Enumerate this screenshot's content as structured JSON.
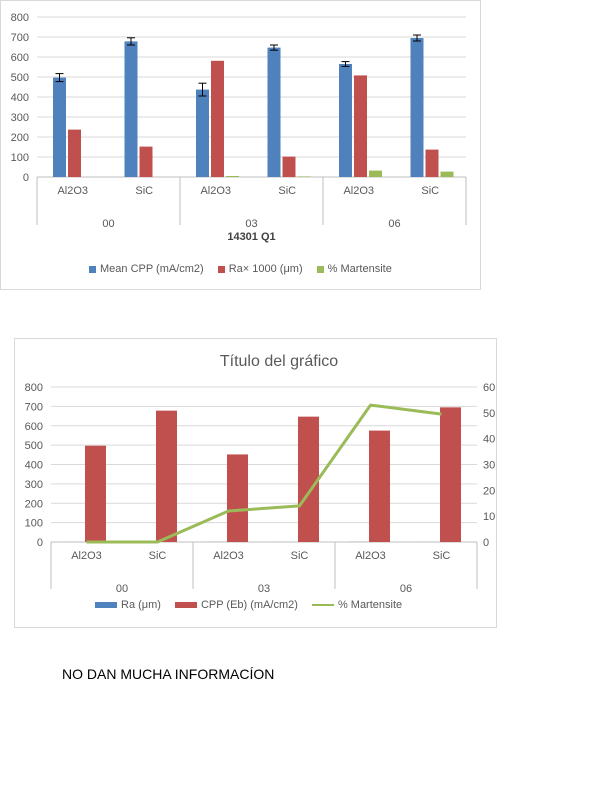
{
  "chart_data": [
    {
      "type": "bar",
      "title": "",
      "group_title": "14301 Q1",
      "categories": [
        "Al2O3",
        "SiC",
        "Al2O3",
        "SiC",
        "Al2O3",
        "SiC"
      ],
      "groups": [
        "00",
        "03",
        "06"
      ],
      "ylim": [
        0,
        800
      ],
      "yticks": [
        0,
        100,
        200,
        300,
        400,
        500,
        600,
        700,
        800
      ],
      "grid": true,
      "legend_position": "bottom",
      "series": [
        {
          "name": "Mean CPP (mA/cm2)",
          "color": "#4f81bd",
          "values": [
            497,
            678,
            437,
            647,
            565,
            695
          ],
          "errors": [
            20,
            18,
            32,
            13,
            12,
            15
          ]
        },
        {
          "name": "Ra× 1000 (μm)",
          "color": "#c0504d",
          "values": [
            237,
            152,
            581,
            102,
            508,
            137
          ],
          "errors": null
        },
        {
          "name": "% Martensite",
          "color": "#9bbb59",
          "values": [
            0,
            0,
            5,
            3,
            32,
            27
          ],
          "errors": null
        }
      ]
    },
    {
      "type": "bar",
      "title": "Título del gráfico",
      "categories": [
        "Al2O3",
        "SiC",
        "Al2O3",
        "SiC",
        "Al2O3",
        "SiC"
      ],
      "groups": [
        "00",
        "03",
        "06"
      ],
      "ylim": [
        0,
        800
      ],
      "yticks": [
        0,
        100,
        200,
        300,
        400,
        500,
        600,
        700,
        800
      ],
      "y2lim": [
        0,
        60
      ],
      "y2ticks": [
        0,
        10,
        20,
        30,
        40,
        50,
        60
      ],
      "grid": true,
      "legend_position": "bottom",
      "series": [
        {
          "name": "Ra (μm)",
          "color": "#4f81bd",
          "type": "bar",
          "axis": "left",
          "values": [
            0.2,
            0.2,
            0.5,
            0.1,
            0.5,
            0.1
          ]
        },
        {
          "name": "CPP (Eb) (mA/cm2)",
          "color": "#c0504d",
          "type": "bar",
          "axis": "left",
          "values": [
            497,
            678,
            452,
            647,
            575,
            695
          ]
        },
        {
          "name": "% Martensite",
          "color": "#9bbb59",
          "type": "line",
          "axis": "right",
          "values": [
            0,
            0,
            12,
            14,
            53,
            49.5
          ]
        }
      ]
    }
  ],
  "note": "NO DAN MUCHA INFORMACÍON"
}
